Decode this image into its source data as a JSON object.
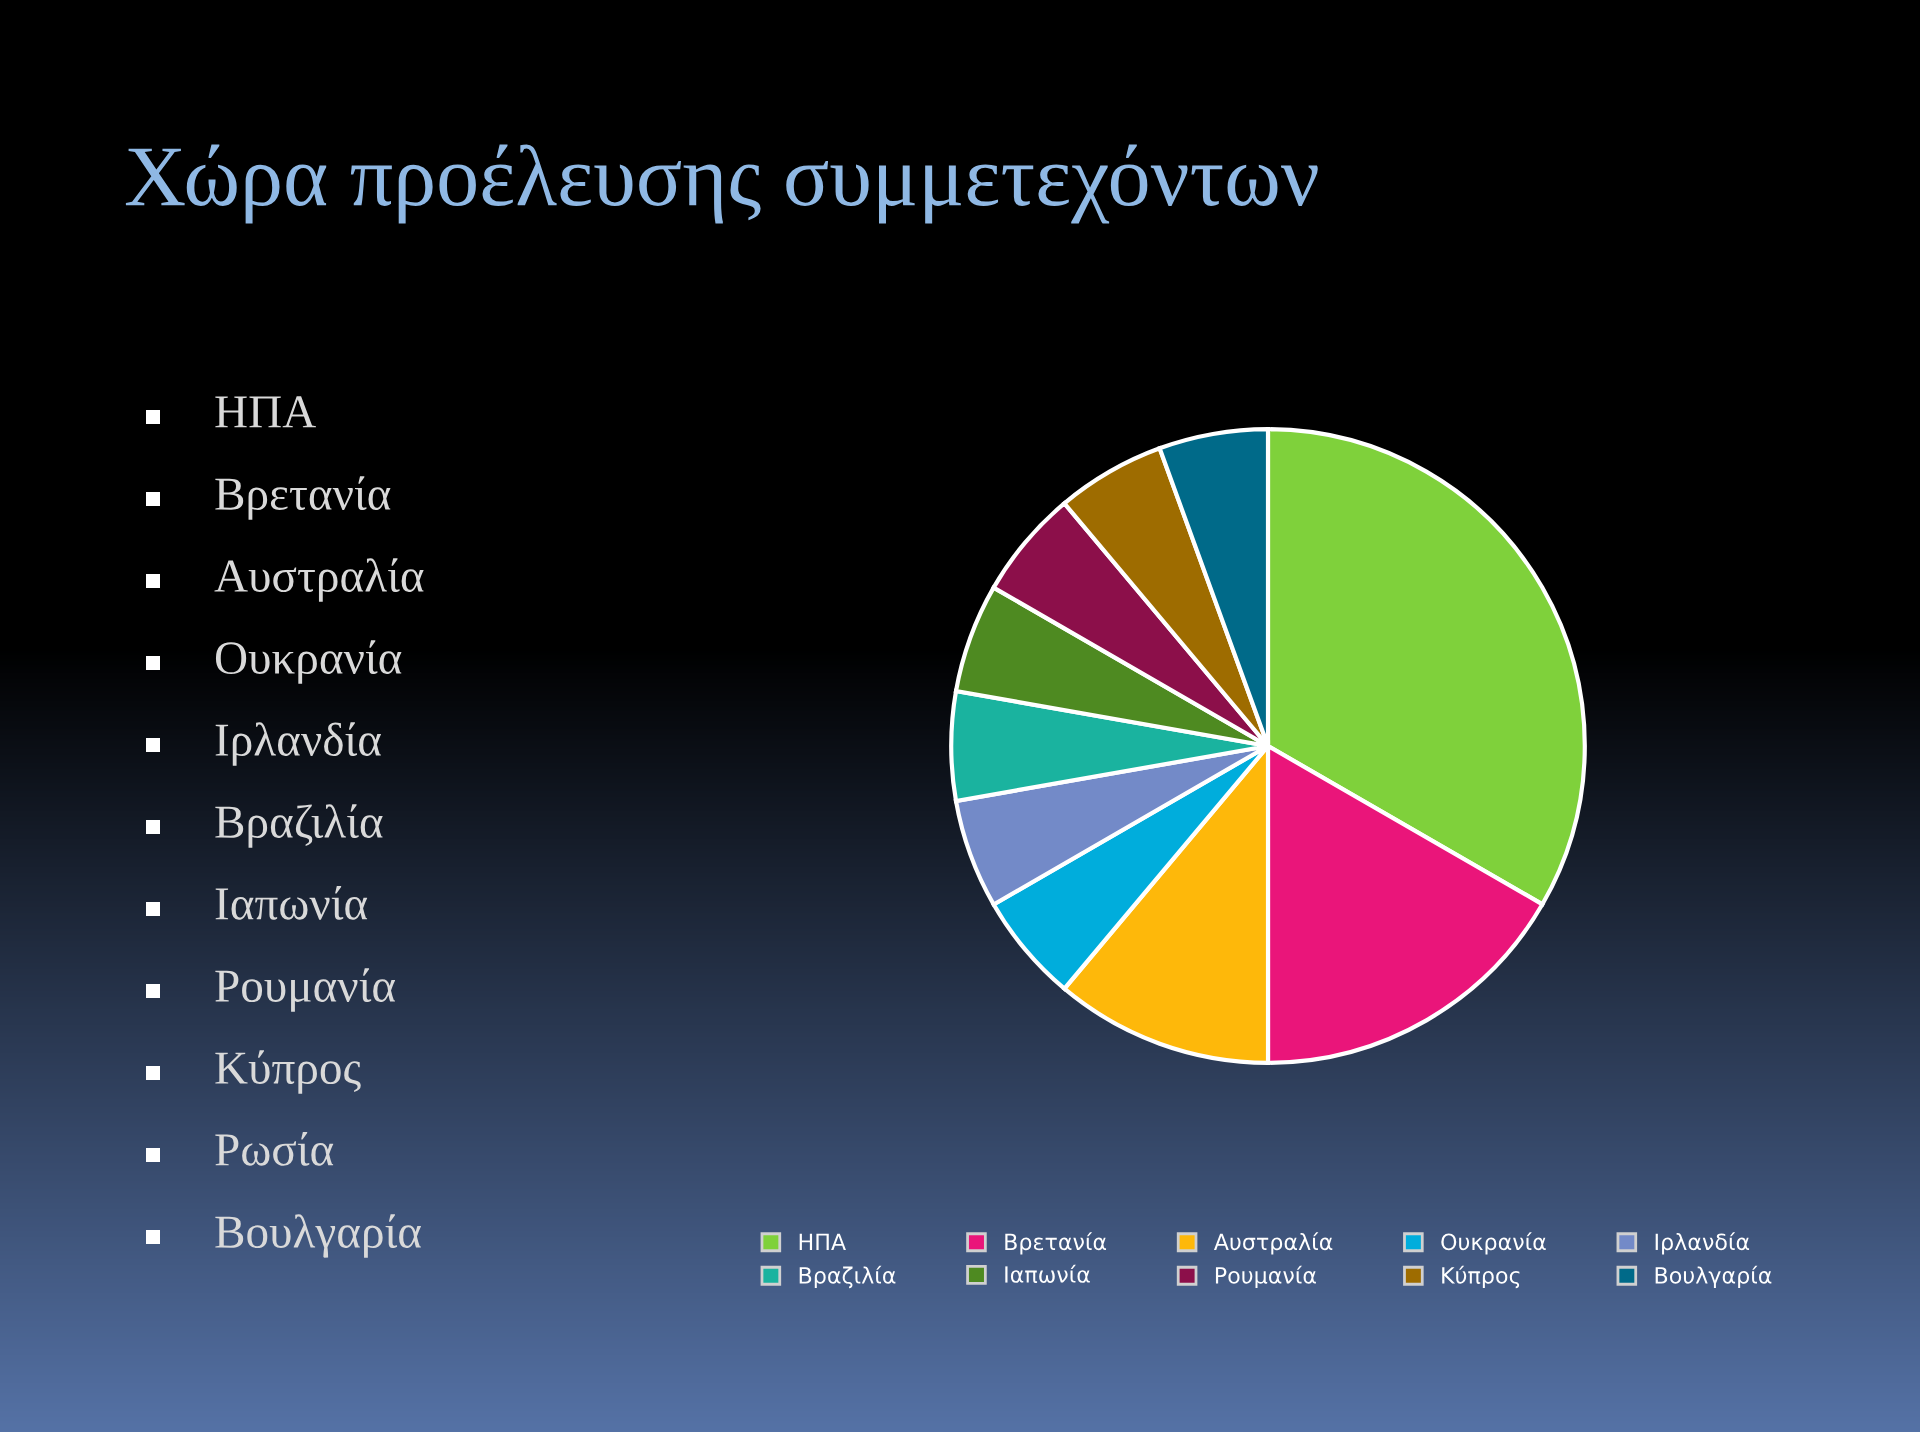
{
  "chart_data": {
    "type": "pie",
    "title": "Χώρα προέλευσης συμμετεχόντων",
    "categories": [
      "ΗΠΑ",
      "Βρετανία",
      "Αυστραλία",
      "Ουκρανία",
      "Ιρλανδία",
      "Βραζιλία",
      "Ιαπωνία",
      "Ρουμανία",
      "Κύπρος",
      "Βουλγαρία"
    ],
    "values": [
      33.33,
      16.67,
      11.11,
      5.556,
      5.556,
      5.556,
      5.556,
      5.556,
      5.556,
      5.556
    ],
    "colors": [
      "#7fd13b",
      "#ea157a",
      "#feb80a",
      "#00addc",
      "#738ac8",
      "#1ab39f",
      "#4e8a21",
      "#8c0f4a",
      "#9e6c00",
      "#006a89"
    ],
    "legend": "bottom",
    "annotations": [
      "ΗΠΑ",
      "Βρετανία",
      "Αυστραλία",
      "Ουκρανία",
      "Ιρλανδία",
      "Βραζιλία",
      "Ιαπωνία",
      "Ρουμανία",
      "Κύπρος",
      "Ρωσία",
      "Βουλγαρία"
    ]
  }
}
